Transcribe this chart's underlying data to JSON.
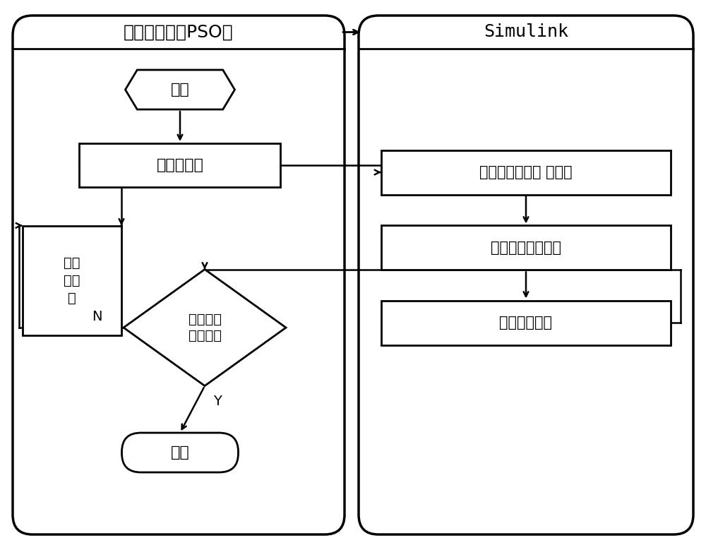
{
  "bg_color": "#ffffff",
  "border_color": "#000000",
  "line_color": "#000000",
  "text_color": "#000000",
  "pso_label": "粒子群算法（PSO）",
  "simulink_label": "Simulink",
  "start_text": "开始",
  "generate_text": "产生粒子群",
  "update_text": "粒子\n群更\n新",
  "assign_text": "粒子依次赋值给Ｊ、Ｔ",
  "run_text": "运行控制系统模型",
  "output_text": "输出性能指标",
  "condition_text": "是否满足\n终止条件",
  "end_text": "结束",
  "n_label": "N",
  "y_label": "Y"
}
